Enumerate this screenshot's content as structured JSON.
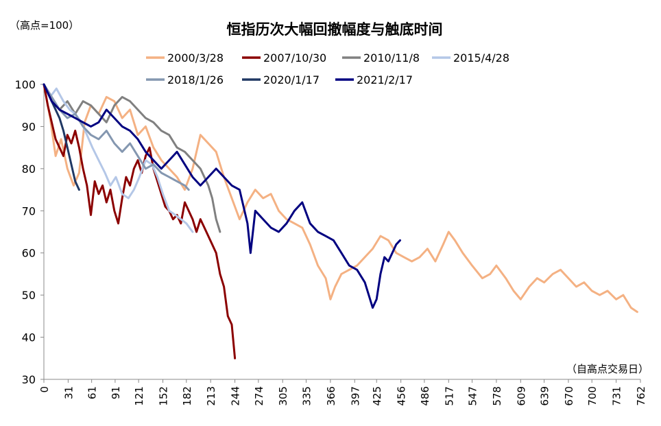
{
  "chart_data": {
    "type": "line",
    "title": "恒指历次大幅回撤幅度与触底时间",
    "ylabel": "（高点=100）",
    "xlabel": "（自高点交易日）",
    "ylim": [
      30,
      100
    ],
    "yticks": [
      30,
      40,
      50,
      60,
      70,
      80,
      90,
      100
    ],
    "xlim": [
      0,
      762
    ],
    "xticks": [
      0,
      31,
      61,
      91,
      121,
      152,
      182,
      213,
      244,
      274,
      305,
      335,
      366,
      397,
      425,
      456,
      486,
      517,
      547,
      578,
      609,
      639,
      670,
      700,
      731,
      762
    ],
    "grid": false,
    "legend_position": "top",
    "series": [
      {
        "name": "2000/3/28",
        "color": "#F4B183",
        "x": [
          0,
          8,
          15,
          22,
          30,
          38,
          45,
          52,
          60,
          70,
          80,
          90,
          100,
          110,
          120,
          130,
          140,
          150,
          160,
          170,
          180,
          190,
          200,
          210,
          220,
          230,
          240,
          250,
          260,
          270,
          280,
          290,
          300,
          310,
          320,
          330,
          340,
          350,
          360,
          366,
          372,
          380,
          390,
          400,
          410,
          420,
          430,
          440,
          450,
          460,
          470,
          480,
          490,
          500,
          510,
          517,
          525,
          535,
          547,
          560,
          570,
          578,
          590,
          600,
          609,
          620,
          630,
          639,
          650,
          660,
          670,
          680,
          690,
          700,
          710,
          720,
          731,
          740,
          750,
          758
        ],
        "y": [
          100,
          92,
          83,
          87,
          80,
          76,
          79,
          91,
          95,
          93,
          97,
          96,
          92,
          94,
          88,
          90,
          85,
          82,
          80,
          78,
          75,
          80,
          88,
          86,
          84,
          78,
          73,
          68,
          72,
          75,
          73,
          74,
          70,
          68,
          67,
          66,
          62,
          57,
          54,
          49,
          52,
          55,
          56,
          57,
          59,
          61,
          64,
          63,
          60,
          59,
          58,
          59,
          61,
          58,
          62,
          65,
          63,
          60,
          57,
          54,
          55,
          57,
          54,
          51,
          49,
          52,
          54,
          53,
          55,
          56,
          54,
          52,
          53,
          51,
          50,
          51,
          49,
          50,
          47,
          46
        ]
      },
      {
        "name": "2007/10/30",
        "color": "#8B0000",
        "x": [
          0,
          5,
          10,
          15,
          20,
          25,
          30,
          35,
          40,
          45,
          50,
          55,
          60,
          65,
          70,
          75,
          80,
          85,
          90,
          95,
          100,
          105,
          110,
          115,
          120,
          125,
          130,
          135,
          140,
          145,
          150,
          155,
          160,
          165,
          170,
          175,
          180,
          185,
          190,
          195,
          200,
          205,
          210,
          215,
          220,
          225,
          230,
          235,
          240,
          244
        ],
        "y": [
          100,
          95,
          91,
          87,
          85,
          83,
          88,
          86,
          89,
          85,
          80,
          76,
          69,
          77,
          74,
          76,
          72,
          75,
          70,
          67,
          73,
          78,
          76,
          80,
          82,
          79,
          83,
          85,
          80,
          77,
          74,
          71,
          70,
          68,
          69,
          67,
          72,
          70,
          68,
          65,
          68,
          66,
          64,
          62,
          60,
          55,
          52,
          45,
          43,
          35
        ]
      },
      {
        "name": "2010/11/8",
        "color": "#808080",
        "x": [
          0,
          10,
          20,
          30,
          40,
          50,
          60,
          70,
          80,
          90,
          100,
          110,
          120,
          130,
          140,
          150,
          160,
          170,
          180,
          190,
          200,
          210,
          215,
          220,
          225
        ],
        "y": [
          100,
          97,
          94,
          96,
          93,
          96,
          95,
          93,
          91,
          95,
          97,
          96,
          94,
          92,
          91,
          89,
          88,
          85,
          84,
          82,
          80,
          76,
          73,
          68,
          65
        ]
      },
      {
        "name": "2015/4/28",
        "color": "#B4C7E7",
        "x": [
          0,
          8,
          16,
          25,
          33,
          40,
          48,
          55,
          62,
          70,
          78,
          85,
          92,
          100,
          108,
          115,
          122,
          130,
          138,
          145,
          152,
          160,
          168,
          175,
          182,
          190
        ],
        "y": [
          100,
          97,
          99,
          96,
          94,
          93,
          91,
          88,
          85,
          82,
          79,
          76,
          78,
          74,
          73,
          75,
          78,
          82,
          81,
          78,
          74,
          70,
          69,
          68,
          67,
          65
        ]
      },
      {
        "name": "2018/1/26",
        "color": "#8497B0",
        "x": [
          0,
          10,
          20,
          30,
          40,
          50,
          60,
          70,
          80,
          90,
          100,
          110,
          120,
          130,
          140,
          150,
          160,
          170,
          180,
          185
        ],
        "y": [
          100,
          97,
          94,
          92,
          93,
          90,
          88,
          87,
          89,
          86,
          84,
          86,
          83,
          80,
          81,
          79,
          78,
          77,
          76,
          75
        ]
      },
      {
        "name": "2020/1/17",
        "color": "#203864",
        "x": [
          0,
          5,
          10,
          15,
          20,
          25,
          30,
          35,
          40,
          45
        ],
        "y": [
          100,
          98,
          96,
          94,
          92,
          89,
          85,
          81,
          77,
          75
        ]
      },
      {
        "name": "2021/2/17",
        "color": "#000080",
        "x": [
          0,
          10,
          20,
          30,
          40,
          50,
          60,
          70,
          80,
          90,
          100,
          110,
          120,
          130,
          140,
          150,
          160,
          170,
          180,
          190,
          200,
          210,
          220,
          230,
          240,
          250,
          260,
          264,
          270,
          280,
          290,
          300,
          310,
          320,
          330,
          340,
          350,
          360,
          370,
          380,
          390,
          400,
          410,
          415,
          420,
          425,
          430,
          435,
          440,
          445,
          450,
          455
        ],
        "y": [
          100,
          96,
          94,
          93,
          92,
          91,
          90,
          91,
          94,
          92,
          90,
          89,
          87,
          84,
          82,
          80,
          82,
          84,
          81,
          78,
          76,
          78,
          80,
          78,
          76,
          75,
          67,
          60,
          70,
          68,
          66,
          65,
          67,
          70,
          72,
          67,
          65,
          64,
          63,
          60,
          57,
          56,
          53,
          50,
          47,
          49,
          55,
          59,
          58,
          60,
          62,
          63
        ]
      }
    ]
  }
}
